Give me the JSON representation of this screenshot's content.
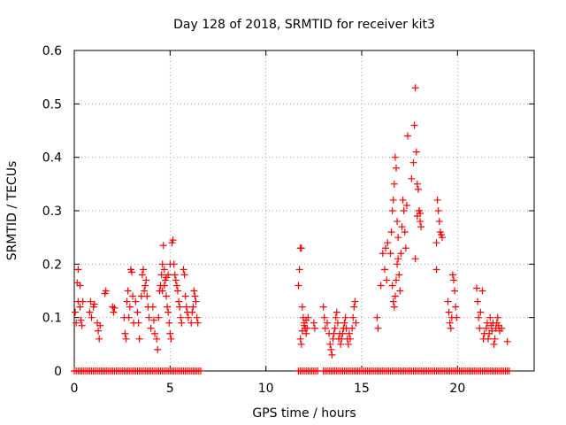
{
  "chart_data": {
    "type": "scatter",
    "title": "Day 128 of 2018, SRMTID for receiver kit3",
    "xlabel": "GPS time / hours",
    "ylabel": "SRMTID / TECUs",
    "xlim": [
      0,
      24
    ],
    "ylim": [
      0,
      0.6
    ],
    "grid": true,
    "x_ticks": [
      0,
      5,
      10,
      15,
      20
    ],
    "y_ticks": [
      0,
      0.1,
      0.2,
      0.3,
      0.4,
      0.5,
      0.6
    ],
    "marker_color": "#ff0000",
    "marker": "plus",
    "series": [
      {
        "name": "SRMTID",
        "points": [
          [
            0.05,
            0.11
          ],
          [
            0.1,
            0.09
          ],
          [
            0.15,
            0.165
          ],
          [
            0.2,
            0.13
          ],
          [
            0.2,
            0.19
          ],
          [
            0.3,
            0.16
          ],
          [
            0.35,
            0.095
          ],
          [
            0.4,
            0.085
          ],
          [
            0.45,
            0.13
          ],
          [
            0.3,
            0.12
          ],
          [
            0.8,
            0.11
          ],
          [
            0.85,
            0.13
          ],
          [
            0.9,
            0.1
          ],
          [
            1.0,
            0.12
          ],
          [
            1.05,
            0.125
          ],
          [
            1.2,
            0.09
          ],
          [
            1.25,
            0.075
          ],
          [
            1.3,
            0.06
          ],
          [
            1.35,
            0.085
          ],
          [
            1.6,
            0.145
          ],
          [
            1.65,
            0.15
          ],
          [
            2.0,
            0.12
          ],
          [
            2.05,
            0.11
          ],
          [
            2.1,
            0.118
          ],
          [
            2.6,
            0.1
          ],
          [
            2.65,
            0.07
          ],
          [
            2.7,
            0.06
          ],
          [
            2.75,
            0.13
          ],
          [
            2.8,
            0.15
          ],
          [
            2.85,
            0.1
          ],
          [
            2.9,
            0.12
          ],
          [
            2.95,
            0.19
          ],
          [
            3.0,
            0.185
          ],
          [
            3.05,
            0.14
          ],
          [
            3.1,
            0.09
          ],
          [
            3.2,
            0.13
          ],
          [
            3.3,
            0.11
          ],
          [
            3.35,
            0.09
          ],
          [
            3.4,
            0.06
          ],
          [
            3.5,
            0.14
          ],
          [
            3.55,
            0.18
          ],
          [
            3.6,
            0.19
          ],
          [
            3.65,
            0.15
          ],
          [
            3.7,
            0.16
          ],
          [
            3.75,
            0.17
          ],
          [
            3.8,
            0.14
          ],
          [
            3.85,
            0.12
          ],
          [
            3.9,
            0.1
          ],
          [
            4.0,
            0.08
          ],
          [
            4.1,
            0.12
          ],
          [
            4.15,
            0.095
          ],
          [
            4.2,
            0.07
          ],
          [
            4.3,
            0.06
          ],
          [
            4.35,
            0.04
          ],
          [
            4.4,
            0.1
          ],
          [
            4.45,
            0.15
          ],
          [
            4.5,
            0.16
          ],
          [
            4.55,
            0.18
          ],
          [
            4.6,
            0.2
          ],
          [
            4.65,
            0.235
          ],
          [
            4.7,
            0.19
          ],
          [
            4.75,
            0.17
          ],
          [
            4.8,
            0.14
          ],
          [
            4.85,
            0.12
          ],
          [
            4.9,
            0.11
          ],
          [
            4.95,
            0.09
          ],
          [
            5.0,
            0.07
          ],
          [
            5.05,
            0.06
          ],
          [
            4.6,
            0.15
          ],
          [
            4.7,
            0.16
          ],
          [
            4.8,
            0.175
          ],
          [
            4.9,
            0.18
          ],
          [
            5.0,
            0.2
          ],
          [
            5.1,
            0.24
          ],
          [
            5.15,
            0.245
          ],
          [
            5.2,
            0.2
          ],
          [
            5.25,
            0.18
          ],
          [
            5.3,
            0.17
          ],
          [
            5.35,
            0.16
          ],
          [
            5.4,
            0.15
          ],
          [
            5.45,
            0.13
          ],
          [
            5.5,
            0.12
          ],
          [
            5.55,
            0.1
          ],
          [
            5.6,
            0.09
          ],
          [
            5.7,
            0.19
          ],
          [
            5.75,
            0.18
          ],
          [
            5.8,
            0.14
          ],
          [
            5.85,
            0.12
          ],
          [
            5.9,
            0.11
          ],
          [
            5.95,
            0.1
          ],
          [
            6.1,
            0.09
          ],
          [
            6.15,
            0.11
          ],
          [
            6.2,
            0.12
          ],
          [
            6.25,
            0.15
          ],
          [
            6.3,
            0.14
          ],
          [
            6.35,
            0.13
          ],
          [
            6.4,
            0.1
          ],
          [
            6.45,
            0.09
          ],
          [
            11.7,
            0.16
          ],
          [
            11.75,
            0.19
          ],
          [
            11.8,
            0.23
          ],
          [
            11.85,
            0.23
          ],
          [
            11.9,
            0.12
          ],
          [
            11.95,
            0.1
          ],
          [
            12.0,
            0.09
          ],
          [
            12.05,
            0.08
          ],
          [
            12.1,
            0.07
          ],
          [
            12.15,
            0.08
          ],
          [
            12.2,
            0.1
          ],
          [
            11.8,
            0.06
          ],
          [
            11.85,
            0.05
          ],
          [
            11.9,
            0.075
          ],
          [
            12.0,
            0.085
          ],
          [
            12.1,
            0.095
          ],
          [
            12.5,
            0.09
          ],
          [
            12.55,
            0.08
          ],
          [
            13.0,
            0.12
          ],
          [
            13.05,
            0.1
          ],
          [
            13.1,
            0.08
          ],
          [
            13.2,
            0.09
          ],
          [
            13.3,
            0.07
          ],
          [
            13.35,
            0.05
          ],
          [
            13.4,
            0.04
          ],
          [
            13.45,
            0.03
          ],
          [
            13.5,
            0.06
          ],
          [
            13.55,
            0.07
          ],
          [
            13.6,
            0.08
          ],
          [
            13.65,
            0.1
          ],
          [
            13.7,
            0.11
          ],
          [
            13.75,
            0.09
          ],
          [
            13.8,
            0.06
          ],
          [
            13.85,
            0.07
          ],
          [
            13.9,
            0.05
          ],
          [
            13.95,
            0.06
          ],
          [
            14.0,
            0.07
          ],
          [
            14.05,
            0.08
          ],
          [
            14.1,
            0.09
          ],
          [
            14.15,
            0.1
          ],
          [
            14.2,
            0.08
          ],
          [
            14.25,
            0.06
          ],
          [
            14.3,
            0.05
          ],
          [
            14.35,
            0.07
          ],
          [
            14.4,
            0.06
          ],
          [
            14.5,
            0.08
          ],
          [
            14.55,
            0.1
          ],
          [
            14.6,
            0.12
          ],
          [
            14.65,
            0.13
          ],
          [
            14.7,
            0.09
          ],
          [
            15.8,
            0.1
          ],
          [
            15.85,
            0.08
          ],
          [
            16.0,
            0.16
          ],
          [
            16.1,
            0.22
          ],
          [
            16.2,
            0.19
          ],
          [
            16.25,
            0.23
          ],
          [
            16.3,
            0.17
          ],
          [
            16.35,
            0.24
          ],
          [
            16.5,
            0.22
          ],
          [
            16.55,
            0.26
          ],
          [
            16.6,
            0.3
          ],
          [
            16.65,
            0.32
          ],
          [
            16.7,
            0.35
          ],
          [
            16.75,
            0.4
          ],
          [
            16.8,
            0.38
          ],
          [
            16.85,
            0.28
          ],
          [
            16.9,
            0.25
          ],
          [
            16.6,
            0.16
          ],
          [
            16.65,
            0.13
          ],
          [
            16.7,
            0.12
          ],
          [
            16.75,
            0.14
          ],
          [
            16.8,
            0.17
          ],
          [
            16.85,
            0.2
          ],
          [
            16.9,
            0.21
          ],
          [
            16.95,
            0.18
          ],
          [
            17.0,
            0.15
          ],
          [
            17.05,
            0.22
          ],
          [
            17.1,
            0.27
          ],
          [
            17.15,
            0.32
          ],
          [
            17.2,
            0.3
          ],
          [
            17.25,
            0.26
          ],
          [
            17.3,
            0.23
          ],
          [
            17.35,
            0.31
          ],
          [
            17.4,
            0.44
          ],
          [
            17.6,
            0.36
          ],
          [
            17.7,
            0.39
          ],
          [
            17.75,
            0.46
          ],
          [
            17.8,
            0.53
          ],
          [
            17.85,
            0.41
          ],
          [
            17.9,
            0.35
          ],
          [
            17.95,
            0.34
          ],
          [
            18.0,
            0.3
          ],
          [
            18.05,
            0.28
          ],
          [
            18.1,
            0.27
          ],
          [
            17.8,
            0.21
          ],
          [
            17.9,
            0.29
          ],
          [
            18.0,
            0.3
          ],
          [
            18.05,
            0.295
          ],
          [
            18.9,
            0.24
          ],
          [
            18.95,
            0.32
          ],
          [
            19.0,
            0.3
          ],
          [
            19.05,
            0.28
          ],
          [
            19.1,
            0.26
          ],
          [
            19.15,
            0.255
          ],
          [
            19.2,
            0.25
          ],
          [
            18.9,
            0.19
          ],
          [
            19.5,
            0.13
          ],
          [
            19.55,
            0.11
          ],
          [
            19.6,
            0.09
          ],
          [
            19.65,
            0.08
          ],
          [
            19.7,
            0.1
          ],
          [
            19.75,
            0.18
          ],
          [
            19.8,
            0.17
          ],
          [
            19.85,
            0.15
          ],
          [
            19.9,
            0.12
          ],
          [
            19.95,
            0.1
          ],
          [
            21.0,
            0.155
          ],
          [
            21.05,
            0.13
          ],
          [
            21.1,
            0.1
          ],
          [
            21.15,
            0.08
          ],
          [
            21.2,
            0.11
          ],
          [
            21.3,
            0.15
          ],
          [
            21.35,
            0.06
          ],
          [
            21.4,
            0.07
          ],
          [
            21.5,
            0.08
          ],
          [
            21.55,
            0.09
          ],
          [
            21.6,
            0.06
          ],
          [
            21.65,
            0.07
          ],
          [
            21.7,
            0.1
          ],
          [
            21.75,
            0.085
          ],
          [
            21.8,
            0.075
          ],
          [
            21.85,
            0.09
          ],
          [
            21.9,
            0.05
          ],
          [
            21.95,
            0.06
          ],
          [
            22.0,
            0.08
          ],
          [
            22.05,
            0.09
          ],
          [
            22.1,
            0.1
          ],
          [
            22.15,
            0.085
          ],
          [
            22.2,
            0.075
          ],
          [
            22.3,
            0.08
          ],
          [
            22.6,
            0.055
          ]
        ],
        "zero_runs": [
          [
            0.0,
            6.6
          ],
          [
            11.7,
            12.7
          ],
          [
            13.0,
            22.7
          ]
        ]
      }
    ]
  }
}
